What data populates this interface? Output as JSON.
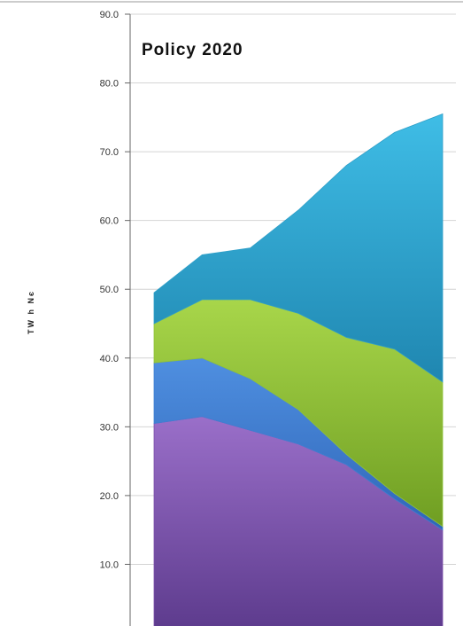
{
  "chart_data": {
    "type": "area",
    "stacked": true,
    "title": "Policy 2020",
    "ylabel": "TW h Nє",
    "ylim": [
      0,
      90
    ],
    "yticks": [
      "10.0",
      "20.0",
      "30.0",
      "40.0",
      "50.0",
      "60.0",
      "70.0",
      "80.0",
      "90.0"
    ],
    "grid": true,
    "x": [
      0,
      1,
      2,
      3,
      4,
      5,
      6
    ],
    "series": [
      {
        "color": "#7a4fa8",
        "values": [
          30.5,
          31.5,
          29.5,
          27.5,
          24.5,
          19.5,
          15.0
        ]
      },
      {
        "color": "#3f7fd2",
        "values": [
          8.8,
          8.5,
          7.5,
          5.0,
          1.5,
          0.8,
          0.5
        ]
      },
      {
        "color": "#8fc23a",
        "values": [
          5.7,
          8.5,
          11.5,
          14.0,
          17.0,
          21.0,
          21.0
        ]
      },
      {
        "color": "#2f9fc8",
        "values": [
          4.5,
          6.5,
          7.5,
          15.0,
          25.0,
          31.5,
          39.0
        ]
      }
    ]
  }
}
